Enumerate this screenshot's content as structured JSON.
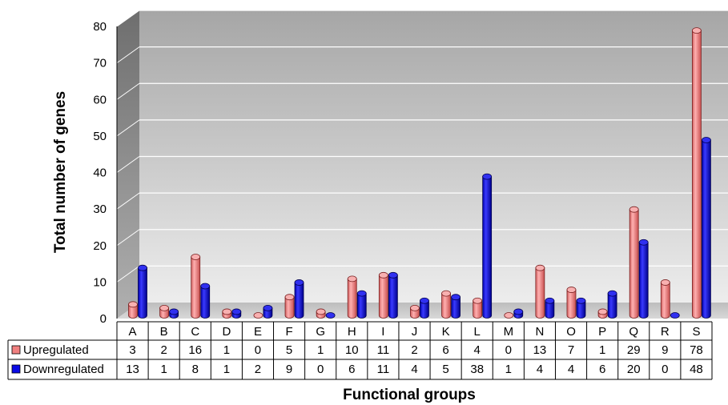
{
  "chart_data": {
    "type": "bar",
    "style": "3d-cylinder",
    "xlabel": "Functional groups",
    "ylabel": "Total number of genes",
    "ylim": [
      0,
      80
    ],
    "yticks": [
      0,
      10,
      20,
      30,
      40,
      50,
      60,
      70,
      80
    ],
    "grid": true,
    "legend": "data-table",
    "categories": [
      "A",
      "B",
      "C",
      "D",
      "E",
      "F",
      "G",
      "H",
      "I",
      "J",
      "K",
      "L",
      "M",
      "N",
      "O",
      "P",
      "Q",
      "R",
      "S"
    ],
    "series": [
      {
        "name": "Upregulated",
        "color": "#f08080",
        "values": [
          3,
          2,
          16,
          1,
          0,
          5,
          1,
          10,
          11,
          2,
          6,
          4,
          0,
          13,
          7,
          1,
          29,
          9,
          78
        ]
      },
      {
        "name": "Downregulated",
        "color": "#0a0ae6",
        "values": [
          13,
          1,
          8,
          1,
          2,
          9,
          0,
          6,
          11,
          4,
          5,
          38,
          1,
          4,
          4,
          6,
          20,
          0,
          48
        ]
      }
    ]
  }
}
